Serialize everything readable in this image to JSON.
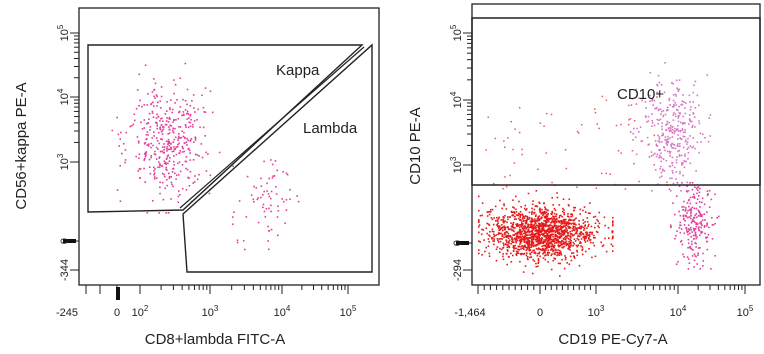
{
  "chart_data": [
    {
      "type": "scatter",
      "xlabel": "CD8+lambda FITC-A",
      "ylabel": "CD56+kappa PE-A",
      "x_min_label": "-245",
      "y_min_label": "-344",
      "x_ticks": [
        "0",
        "10^2",
        "10^3",
        "10^4",
        "10^5"
      ],
      "y_ticks": [
        "0",
        "10^3",
        "10^4",
        "10^5"
      ],
      "axis_scale": "biexponential",
      "gates": [
        {
          "label": "Kappa"
        },
        {
          "label": "Lambda"
        }
      ],
      "populations": [
        {
          "color": "#e0409a",
          "x_center": 120,
          "y_center": 3000,
          "approx_events": 420
        },
        {
          "color": "#e0409a",
          "x_center": 10000,
          "y_center": 400,
          "approx_events": 70
        }
      ]
    },
    {
      "type": "scatter",
      "xlabel": "CD19 PE-Cy7-A",
      "ylabel": "CD10 PE-A",
      "x_min_label": "-1,464",
      "y_min_label": "-294",
      "x_ticks": [
        "0",
        "10^3",
        "10^4",
        "10^5"
      ],
      "y_ticks": [
        "0",
        "10^3",
        "10^4",
        "10^5"
      ],
      "axis_scale": "biexponential",
      "gates": [
        {
          "label": "CD10+"
        }
      ],
      "populations": [
        {
          "color": "#e41b1b",
          "x_center": 0,
          "y_center": 0,
          "approx_events": 1500
        },
        {
          "color": "#d775c8",
          "x_center": 13000,
          "y_center": 6000,
          "approx_events": 330
        },
        {
          "color": "#e0409a",
          "x_center": 16000,
          "y_center": 150,
          "approx_events": 230
        }
      ]
    }
  ]
}
